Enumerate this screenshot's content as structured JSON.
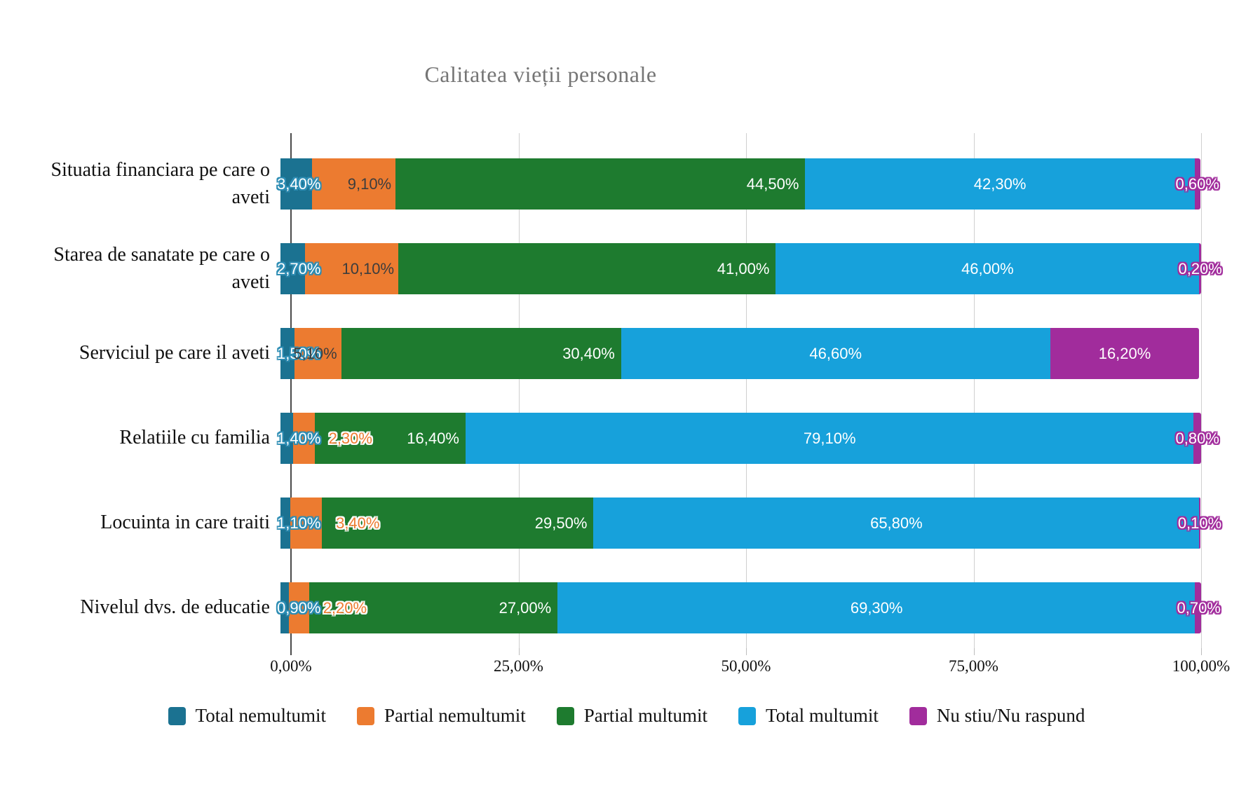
{
  "title": "Calitatea vieții personale",
  "chart_data": {
    "type": "bar",
    "stacked": true,
    "orientation": "horizontal",
    "title": "Calitatea vieții personale",
    "legend_position": "bottom",
    "x_axis": {
      "range": [
        0,
        100
      ],
      "ticks": [
        "0,00%",
        "25,00%",
        "50,00%",
        "75,00%",
        "100,00%"
      ],
      "gridlines": true
    },
    "categories": [
      "Situatia financiara pe care o aveti",
      "Starea de sanatate pe care o aveti",
      "Serviciul pe care il aveti",
      "Relatiile cu familia",
      "Locuinta in care traiti",
      "Nivelul dvs. de educatie"
    ],
    "series": [
      {
        "name": "Total nemultumit",
        "color": "#1b7291",
        "values": [
          3.4,
          2.7,
          1.5,
          1.4,
          1.1,
          0.9
        ],
        "value_labels": [
          "3,40%",
          "2,70%",
          "1,50%",
          "1,40%",
          "1,10%",
          "0,90%"
        ]
      },
      {
        "name": "Partial nemultumit",
        "color": "#ec7b30",
        "values": [
          9.1,
          10.1,
          5.1,
          2.3,
          3.4,
          2.2
        ],
        "value_labels": [
          "9,10%",
          "10,10%",
          "5,10%",
          "2,30%",
          "3,40%",
          "2,20%"
        ]
      },
      {
        "name": "Partial multumit",
        "color": "#1e7b2f",
        "values": [
          44.5,
          41.0,
          30.4,
          16.4,
          29.5,
          27.0
        ],
        "value_labels": [
          "44,50%",
          "41,00%",
          "30,40%",
          "16,40%",
          "29,50%",
          "27,00%"
        ]
      },
      {
        "name": "Total multumit",
        "color": "#17a1db",
        "values": [
          42.3,
          46.0,
          46.6,
          79.1,
          65.8,
          69.3
        ],
        "value_labels": [
          "42,30%",
          "46,00%",
          "46,60%",
          "79,10%",
          "65,80%",
          "69,30%"
        ]
      },
      {
        "name": "Nu stiu/Nu raspund",
        "color": "#a12c9c",
        "values": [
          0.6,
          0.2,
          16.2,
          0.8,
          0.1,
          0.7
        ],
        "value_labels": [
          "0,60%",
          "0,20%",
          "16,20%",
          "0,80%",
          "0,10%",
          "0,70%"
        ]
      }
    ]
  }
}
